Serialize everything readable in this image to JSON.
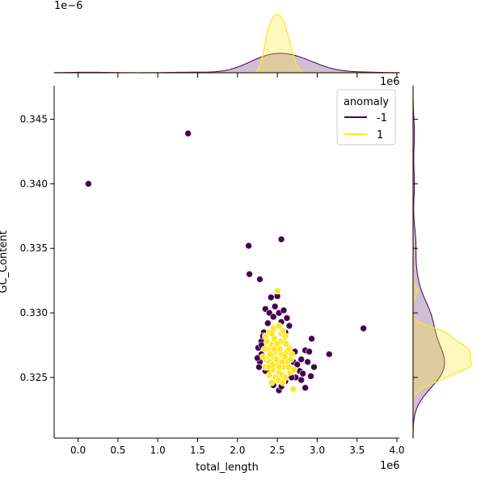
{
  "chart_data": {
    "type": "scatter",
    "xlabel": "total_length",
    "ylabel": "GC_Content",
    "x_unit_label": "1e6",
    "y_unit_label": "",
    "xlim": [
      -0.3,
      4.03
    ],
    "ylim": [
      0.3203,
      0.3476
    ],
    "x_ticks": [
      0.0,
      0.5,
      1.0,
      1.5,
      2.0,
      2.5,
      3.0,
      3.5,
      4.0
    ],
    "x_tick_labels": [
      "0.0",
      "0.5",
      "1.0",
      "1.5",
      "2.0",
      "2.5",
      "3.0",
      "3.5",
      "4.0"
    ],
    "y_ticks": [
      0.325,
      0.33,
      0.335,
      0.34,
      0.345
    ],
    "y_tick_labels": [
      "0.325",
      "0.330",
      "0.335",
      "0.340",
      "0.345"
    ],
    "legend": {
      "title": "anomaly",
      "placement": "top-right",
      "entries": [
        {
          "label": "-1",
          "color": "#440154"
        },
        {
          "label": "1",
          "color": "#fde725"
        }
      ]
    },
    "series": [
      {
        "name": "-1",
        "color": "#440154",
        "points": [
          [
            0.13,
            0.34
          ],
          [
            1.38,
            0.3439
          ],
          [
            2.14,
            0.3352
          ],
          [
            2.55,
            0.3357
          ],
          [
            2.15,
            0.333
          ],
          [
            2.28,
            0.3326
          ],
          [
            3.58,
            0.3288
          ],
          [
            3.15,
            0.3268
          ],
          [
            2.85,
            0.3271
          ],
          [
            2.93,
            0.328
          ],
          [
            2.5,
            0.3313
          ],
          [
            2.42,
            0.3312
          ],
          [
            2.35,
            0.3303
          ],
          [
            2.4,
            0.33
          ],
          [
            2.47,
            0.3305
          ],
          [
            2.52,
            0.33
          ],
          [
            2.58,
            0.3302
          ],
          [
            2.62,
            0.3296
          ],
          [
            2.45,
            0.3297
          ],
          [
            2.38,
            0.3292
          ],
          [
            2.55,
            0.3293
          ],
          [
            2.33,
            0.3285
          ],
          [
            2.3,
            0.3278
          ],
          [
            2.65,
            0.329
          ],
          [
            2.6,
            0.3285
          ],
          [
            2.3,
            0.3268
          ],
          [
            2.26,
            0.3273
          ],
          [
            2.28,
            0.3262
          ],
          [
            2.25,
            0.3265
          ],
          [
            2.27,
            0.3258
          ],
          [
            2.7,
            0.3262
          ],
          [
            2.75,
            0.326
          ],
          [
            2.8,
            0.3264
          ],
          [
            2.88,
            0.3262
          ],
          [
            2.9,
            0.327
          ],
          [
            2.96,
            0.3258
          ],
          [
            2.78,
            0.3255
          ],
          [
            2.73,
            0.325
          ],
          [
            2.82,
            0.3253
          ],
          [
            2.92,
            0.3251
          ],
          [
            2.68,
            0.325
          ],
          [
            2.6,
            0.3247
          ],
          [
            2.52,
            0.324
          ],
          [
            2.45,
            0.3244
          ],
          [
            2.55,
            0.3243
          ],
          [
            2.85,
            0.3242
          ],
          [
            2.8,
            0.3248
          ],
          [
            2.35,
            0.3255
          ],
          [
            2.4,
            0.3257
          ],
          [
            2.3,
            0.3275
          ],
          [
            2.32,
            0.3282
          ],
          [
            2.65,
            0.3257
          ],
          [
            2.72,
            0.327
          ],
          [
            2.62,
            0.327
          ]
        ]
      },
      {
        "name": "1",
        "color": "#fde725",
        "points": [
          [
            2.5,
            0.3317
          ],
          [
            2.52,
            0.329
          ],
          [
            2.45,
            0.3288
          ],
          [
            2.4,
            0.3285
          ],
          [
            2.35,
            0.3282
          ],
          [
            2.55,
            0.3284
          ],
          [
            2.6,
            0.3282
          ],
          [
            2.58,
            0.3278
          ],
          [
            2.42,
            0.3276
          ],
          [
            2.48,
            0.3274
          ],
          [
            2.38,
            0.3272
          ],
          [
            2.62,
            0.327
          ],
          [
            2.65,
            0.3272
          ],
          [
            2.55,
            0.3268
          ],
          [
            2.45,
            0.3266
          ],
          [
            2.36,
            0.3264
          ],
          [
            2.4,
            0.3262
          ],
          [
            2.5,
            0.326
          ],
          [
            2.58,
            0.3258
          ],
          [
            2.63,
            0.3262
          ],
          [
            2.67,
            0.3264
          ],
          [
            2.44,
            0.3256
          ],
          [
            2.52,
            0.3254
          ],
          [
            2.56,
            0.3252
          ],
          [
            2.48,
            0.325
          ],
          [
            2.4,
            0.3252
          ],
          [
            2.6,
            0.325
          ],
          [
            2.66,
            0.3254
          ],
          [
            2.35,
            0.3258
          ],
          [
            2.32,
            0.3266
          ],
          [
            2.34,
            0.3272
          ],
          [
            2.37,
            0.3278
          ],
          [
            2.46,
            0.328
          ],
          [
            2.54,
            0.3278
          ],
          [
            2.61,
            0.3276
          ],
          [
            2.68,
            0.3268
          ],
          [
            2.71,
            0.3256
          ],
          [
            2.43,
            0.3246
          ],
          [
            2.51,
            0.3248
          ],
          [
            2.57,
            0.3246
          ],
          [
            2.7,
            0.3241
          ],
          [
            2.47,
            0.327
          ],
          [
            2.53,
            0.3272
          ],
          [
            2.49,
            0.3264
          ],
          [
            2.41,
            0.3268
          ],
          [
            2.59,
            0.3266
          ],
          [
            2.44,
            0.326
          ],
          [
            2.56,
            0.3262
          ],
          [
            2.52,
            0.3258
          ],
          [
            2.39,
            0.3258
          ],
          [
            2.64,
            0.3258
          ],
          [
            2.46,
            0.3272
          ],
          [
            2.5,
            0.3276
          ],
          [
            2.43,
            0.3284
          ],
          [
            2.57,
            0.3286
          ]
        ]
      }
    ],
    "top_marginal": {
      "type": "kde",
      "scale_label": "1e−6",
      "series": [
        {
          "name": "-1",
          "color": "#440154"
        },
        {
          "name": "1",
          "color": "#fde725"
        }
      ]
    },
    "right_marginal": {
      "type": "kde",
      "scale_label": "1e6",
      "series": [
        {
          "name": "-1",
          "color": "#440154"
        },
        {
          "name": "1",
          "color": "#fde725"
        }
      ]
    }
  }
}
